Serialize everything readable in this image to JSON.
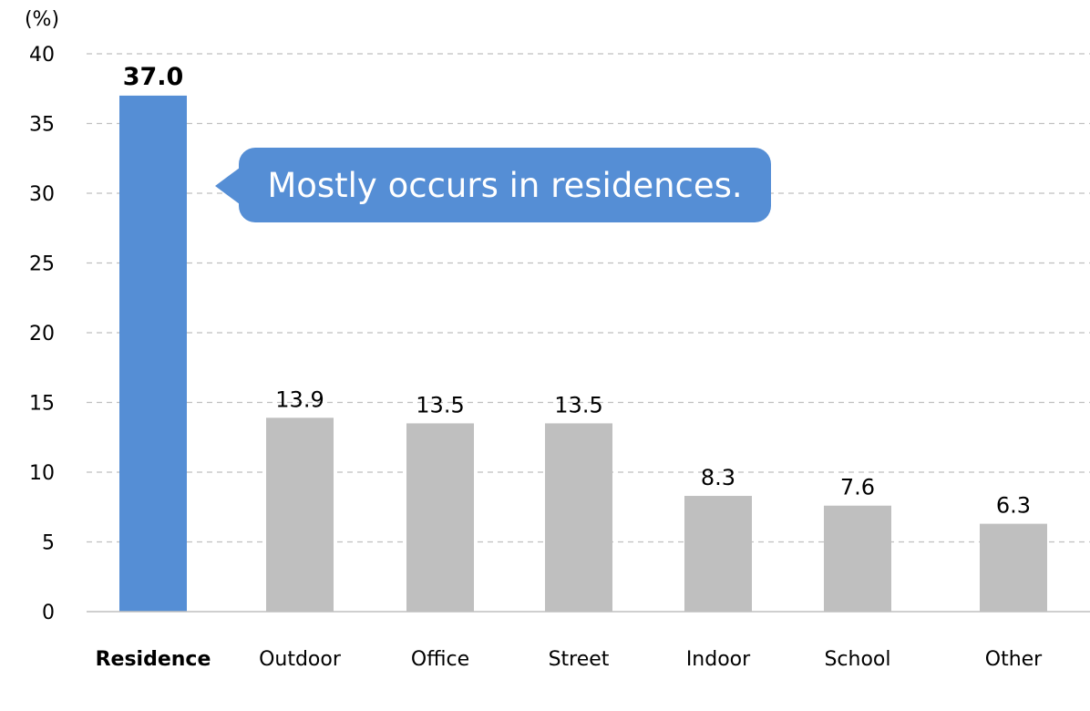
{
  "chart_data": {
    "type": "bar",
    "unit_label": "(%)",
    "categories": [
      "Residence",
      "Outdoor",
      "Office",
      "Street",
      "Indoor",
      "School",
      "Other"
    ],
    "values": [
      37.0,
      13.9,
      13.5,
      13.5,
      8.3,
      7.6,
      6.3
    ],
    "value_labels": [
      "37.0",
      "13.9",
      "13.5",
      "13.5",
      "8.3",
      "7.6",
      "6.3"
    ],
    "highlight_index": 0,
    "ylim": [
      0,
      40
    ],
    "yticks": [
      "0",
      "5",
      "10",
      "15",
      "20",
      "25",
      "30",
      "35",
      "40"
    ],
    "grid": true,
    "colors": {
      "highlight": "#558ed5",
      "normal": "#bfbfbf",
      "grid": "#bfbfbf",
      "text": "#000000"
    },
    "annotation": "Mostly occurs in residences."
  }
}
